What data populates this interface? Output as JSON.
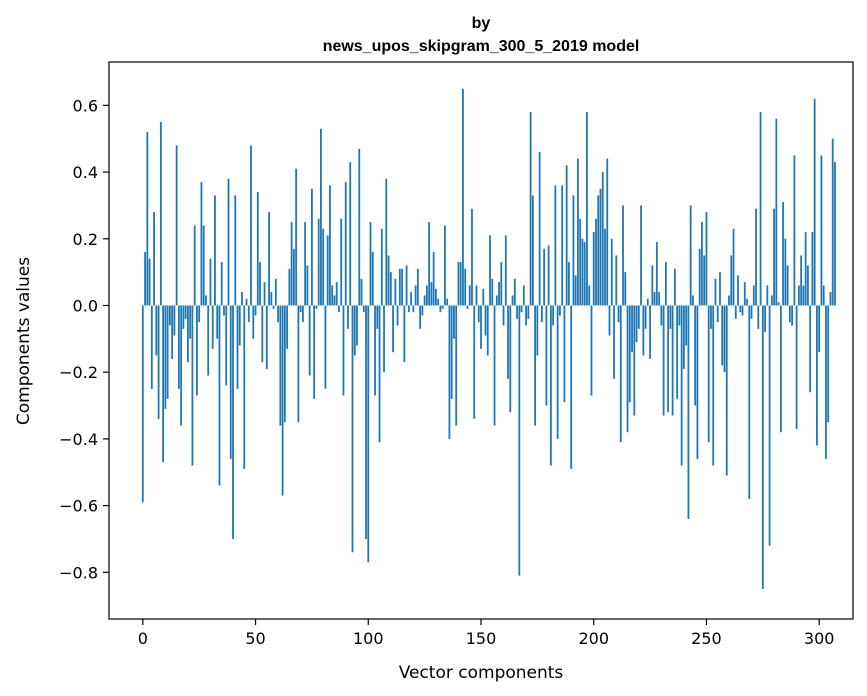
{
  "chart_data": {
    "type": "bar",
    "title_lines": [
      "by",
      "news_upos_skipgram_300_5_2019 model"
    ],
    "xlabel": "Vector components",
    "ylabel": "Components values",
    "xlim": [
      -15,
      315
    ],
    "ylim": [
      -0.94,
      0.73
    ],
    "xticks": [
      0,
      50,
      100,
      150,
      200,
      250,
      300
    ],
    "xtick_labels": [
      "0",
      "50",
      "100",
      "150",
      "200",
      "250",
      "300"
    ],
    "yticks": [
      -0.8,
      -0.6,
      -0.4,
      -0.2,
      0.0,
      0.2,
      0.4,
      0.6
    ],
    "ytick_labels": [
      "−0.8",
      "−0.6",
      "−0.4",
      "−0.2",
      "0.0",
      "0.2",
      "0.4",
      "0.6"
    ],
    "bar_color": "#1f77b4",
    "grid": false,
    "values": [
      -0.59,
      0.16,
      0.52,
      0.14,
      -0.25,
      0.28,
      -0.15,
      -0.34,
      0.55,
      -0.47,
      -0.31,
      -0.28,
      -0.06,
      -0.16,
      -0.09,
      0.48,
      -0.25,
      -0.36,
      -0.07,
      -0.04,
      -0.17,
      -0.1,
      -0.48,
      0.24,
      -0.27,
      -0.05,
      0.37,
      0.24,
      0.03,
      -0.21,
      0.14,
      -0.13,
      0.33,
      -0.1,
      -0.54,
      0.13,
      -0.03,
      -0.24,
      0.38,
      -0.46,
      -0.7,
      0.33,
      -0.25,
      -0.12,
      0.04,
      -0.49,
      0.02,
      -0.05,
      0.48,
      -0.1,
      -0.03,
      0.34,
      0.13,
      -0.17,
      0.07,
      -0.19,
      0.28,
      0.04,
      -0.01,
      0.08,
      -0.05,
      -0.36,
      -0.57,
      -0.35,
      -0.13,
      0.11,
      0.25,
      0.17,
      0.41,
      -0.35,
      -0.02,
      -0.05,
      0.25,
      0.12,
      -0.21,
      0.35,
      -0.28,
      -0.01,
      0.26,
      0.53,
      0.23,
      -0.25,
      0.21,
      0.36,
      0.06,
      0.03,
      0.07,
      -0.02,
      0.26,
      -0.27,
      0.37,
      -0.07,
      0.43,
      -0.74,
      -0.15,
      -0.12,
      0.47,
      0.08,
      -0.02,
      -0.7,
      -0.77,
      0.25,
      0.16,
      -0.27,
      -0.07,
      -0.41,
      0.23,
      -0.2,
      0.38,
      0.15,
      0.1,
      -0.14,
      0.08,
      -0.06,
      0.11,
      0.11,
      -0.17,
      0.12,
      -0.02,
      0.04,
      -0.02,
      0.06,
      0.11,
      -0.07,
      -0.03,
      0.03,
      0.06,
      0.25,
      0.07,
      0.16,
      0.05,
      0.02,
      -0.02,
      -0.01,
      0.24,
      0.02,
      -0.4,
      -0.28,
      -0.1,
      -0.36,
      0.13,
      0.13,
      0.65,
      0.11,
      -0.01,
      0.06,
      0.29,
      -0.34,
      0.06,
      -0.05,
      -0.13,
      0.05,
      -0.09,
      -0.15,
      0.21,
      0.08,
      -0.36,
      0.03,
      0.07,
      0.13,
      -0.06,
      0.21,
      -0.22,
      -0.32,
      0.03,
      0.08,
      -0.04,
      -0.81,
      -0.02,
      0.06,
      -0.06,
      -0.04,
      0.58,
      0.33,
      -0.36,
      -0.15,
      0.46,
      -0.05,
      0.17,
      -0.3,
      0.18,
      -0.48,
      -0.06,
      0.36,
      -0.4,
      -0.03,
      0.36,
      -0.29,
      0.42,
      0.13,
      -0.49,
      0.33,
      0.09,
      0.44,
      0.26,
      0.2,
      0.19,
      0.58,
      0.06,
      -0.27,
      0.22,
      0.26,
      0.33,
      0.35,
      0.4,
      0.23,
      0.44,
      -0.09,
      0.2,
      -0.22,
      0.15,
      -0.05,
      -0.41,
      0.3,
      0.1,
      -0.38,
      -0.29,
      -0.14,
      -0.33,
      -0.11,
      -0.07,
      0.3,
      -0.15,
      -0.07,
      0.02,
      -0.16,
      0.12,
      0.04,
      0.19,
      0.04,
      -0.06,
      -0.33,
      0.13,
      -0.32,
      -0.07,
      -0.33,
      0.11,
      -0.28,
      -0.06,
      -0.48,
      -0.19,
      -0.12,
      -0.64,
      0.3,
      0.03,
      -0.3,
      -0.46,
      0.17,
      0.25,
      0.15,
      0.28,
      -0.41,
      -0.07,
      -0.48,
      0.08,
      -0.05,
      0.1,
      -0.18,
      -0.2,
      -0.51,
      0.03,
      0.15,
      0.23,
      -0.04,
      0.09,
      -0.02,
      -0.03,
      0.07,
      0.02,
      -0.58,
      -0.04,
      0.06,
      0.29,
      -0.07,
      0.58,
      -0.85,
      -0.08,
      0.06,
      -0.72,
      0.03,
      0.29,
      0.56,
      0.01,
      -0.38,
      0.31,
      0.2,
      0.12,
      -0.05,
      -0.06,
      0.45,
      -0.37,
      0.06,
      0.15,
      0.06,
      0.22,
      0.12,
      -0.26,
      0.22,
      0.62,
      -0.42,
      -0.14,
      0.45,
      0.06,
      -0.46,
      -0.35,
      0.04,
      0.5,
      0.43
    ]
  }
}
